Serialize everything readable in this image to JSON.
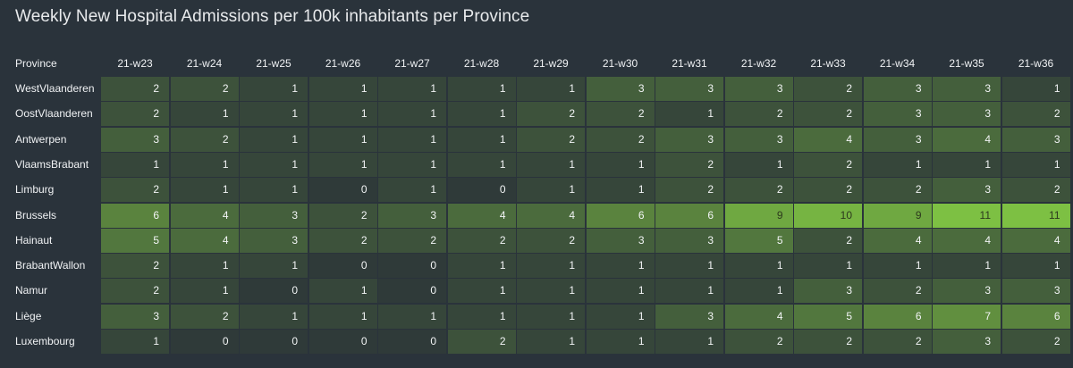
{
  "chart_data": {
    "type": "heatmap",
    "title": "Weekly New Hospital Admissions per 100k inhabitants per Province",
    "row_header": "Province",
    "columns": [
      "21-w23",
      "21-w24",
      "21-w25",
      "21-w26",
      "21-w27",
      "21-w28",
      "21-w29",
      "21-w30",
      "21-w31",
      "21-w32",
      "21-w33",
      "21-w34",
      "21-w35",
      "21-w36"
    ],
    "rows": [
      "WestVlaanderen",
      "OostVlaanderen",
      "Antwerpen",
      "VlaamsBrabant",
      "Limburg",
      "Brussels",
      "Hainaut",
      "BrabantWallon",
      "Namur",
      "Liège",
      "Luxembourg"
    ],
    "values": [
      [
        2,
        2,
        1,
        1,
        1,
        1,
        1,
        3,
        3,
        3,
        2,
        3,
        3,
        1
      ],
      [
        2,
        1,
        1,
        1,
        1,
        1,
        2,
        2,
        1,
        2,
        2,
        3,
        3,
        2
      ],
      [
        3,
        2,
        1,
        1,
        1,
        1,
        2,
        2,
        3,
        3,
        4,
        3,
        4,
        3
      ],
      [
        1,
        1,
        1,
        1,
        1,
        1,
        1,
        1,
        2,
        1,
        2,
        1,
        1,
        1
      ],
      [
        2,
        1,
        1,
        0,
        1,
        0,
        1,
        1,
        2,
        2,
        2,
        2,
        3,
        2
      ],
      [
        6,
        4,
        3,
        2,
        3,
        4,
        4,
        6,
        6,
        9,
        10,
        9,
        11,
        11
      ],
      [
        5,
        4,
        3,
        2,
        2,
        2,
        2,
        3,
        3,
        5,
        2,
        4,
        4,
        4
      ],
      [
        2,
        1,
        1,
        0,
        0,
        1,
        1,
        1,
        1,
        1,
        1,
        1,
        1,
        1
      ],
      [
        2,
        1,
        0,
        1,
        0,
        1,
        1,
        1,
        1,
        1,
        3,
        2,
        3,
        3
      ],
      [
        3,
        2,
        1,
        1,
        1,
        1,
        1,
        1,
        3,
        4,
        5,
        6,
        7,
        6
      ],
      [
        1,
        0,
        0,
        0,
        0,
        2,
        1,
        1,
        1,
        2,
        2,
        2,
        3,
        2
      ]
    ],
    "color_scale": {
      "low": "#2f3a39",
      "high": "#7dc043"
    }
  }
}
